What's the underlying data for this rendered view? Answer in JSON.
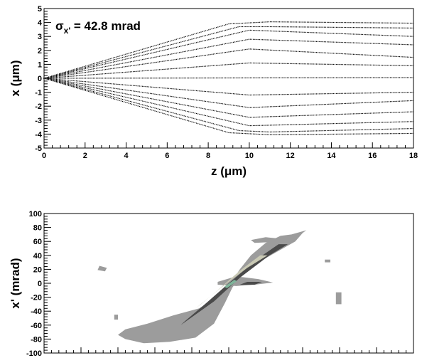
{
  "chart_data": [
    {
      "type": "scatter",
      "title": "",
      "annotation": {
        "symbol": "σ",
        "subscript": "x'",
        "text": " = 42.8 mrad"
      },
      "xlabel": "z (μm)",
      "ylabel": "x (μm)",
      "xlim": [
        0,
        18
      ],
      "ylim": [
        -5,
        5
      ],
      "xticks": [
        0,
        2,
        4,
        6,
        8,
        10,
        12,
        14,
        16,
        18
      ],
      "yticks": [
        -5,
        -4,
        -3,
        -2,
        -1,
        0,
        1,
        2,
        3,
        4,
        5
      ],
      "grid": false,
      "trajectories": [
        {
          "x": [
            0,
            9,
            11,
            18
          ],
          "y": [
            0,
            3.9,
            4.05,
            3.95
          ]
        },
        {
          "x": [
            0,
            9.5,
            11,
            18
          ],
          "y": [
            0,
            3.7,
            3.7,
            3.6
          ]
        },
        {
          "x": [
            0,
            10,
            18
          ],
          "y": [
            0,
            3.45,
            3.0
          ]
        },
        {
          "x": [
            0,
            10,
            18
          ],
          "y": [
            0,
            2.8,
            2.4
          ]
        },
        {
          "x": [
            0,
            10,
            18
          ],
          "y": [
            0,
            2.1,
            1.5
          ]
        },
        {
          "x": [
            0,
            10,
            18
          ],
          "y": [
            0,
            1.1,
            0.9
          ]
        },
        {
          "x": [
            0,
            18
          ],
          "y": [
            0,
            0.05
          ]
        },
        {
          "x": [
            0,
            10,
            18
          ],
          "y": [
            0,
            -1.2,
            -1.0
          ]
        },
        {
          "x": [
            0,
            10,
            18
          ],
          "y": [
            0,
            -2.1,
            -1.6
          ]
        },
        {
          "x": [
            0,
            10,
            18
          ],
          "y": [
            0,
            -2.8,
            -2.4
          ]
        },
        {
          "x": [
            0,
            10,
            18
          ],
          "y": [
            0,
            -3.4,
            -3.1
          ]
        },
        {
          "x": [
            0,
            9.5,
            11,
            18
          ],
          "y": [
            0,
            -3.75,
            -3.85,
            -3.6
          ]
        },
        {
          "x": [
            0,
            9,
            11,
            18
          ],
          "y": [
            0,
            -3.9,
            -4.05,
            -3.95
          ]
        }
      ]
    },
    {
      "type": "heatmap",
      "title": "",
      "xlabel": "",
      "ylabel": "x' (mrad)",
      "xlim": [
        -5,
        5
      ],
      "ylim": [
        -100,
        100
      ],
      "xticks": [
        -5,
        -4,
        -3,
        -2,
        -1,
        0,
        1,
        2,
        3,
        4,
        5
      ],
      "yticks": [
        -100,
        -80,
        -60,
        -40,
        -20,
        0,
        20,
        40,
        60,
        80,
        100
      ],
      "show_xtick_labels": false,
      "colors": {
        "outer": "#9c9c9c",
        "mid": "#4a4a4a",
        "light": "#c9c9b4",
        "core": "#7fb49a"
      },
      "regions": [
        {
          "level": "outer",
          "points": [
            [
              -3.0,
              -74
            ],
            [
              -2.8,
              -80
            ],
            [
              -2.3,
              -86
            ],
            [
              -1.6,
              -84
            ],
            [
              -0.9,
              -78
            ],
            [
              -0.4,
              -58
            ],
            [
              -0.1,
              -28
            ],
            [
              0.1,
              -6
            ],
            [
              0.35,
              12
            ],
            [
              0.8,
              30
            ],
            [
              1.4,
              48
            ],
            [
              1.8,
              60
            ],
            [
              2.0,
              72
            ],
            [
              2.1,
              76
            ],
            [
              1.7,
              70
            ],
            [
              1.4,
              68
            ],
            [
              1.0,
              58
            ],
            [
              0.6,
              40
            ],
            [
              0.3,
              20
            ],
            [
              0.05,
              0
            ],
            [
              -0.2,
              -16
            ],
            [
              -0.8,
              -36
            ],
            [
              -1.5,
              -46
            ],
            [
              -2.2,
              -58
            ],
            [
              -2.8,
              -66
            ]
          ]
        },
        {
          "level": "outer",
          "points": [
            [
              -0.3,
              2
            ],
            [
              0.2,
              10
            ],
            [
              0.8,
              6
            ],
            [
              1.2,
              1
            ],
            [
              0.7,
              -2
            ],
            [
              0.2,
              -4
            ],
            [
              -0.3,
              -2
            ]
          ]
        },
        {
          "level": "outer",
          "points": [
            [
              -3.5,
              25
            ],
            [
              -3.3,
              22
            ],
            [
              -3.35,
              17
            ],
            [
              -3.55,
              19
            ]
          ]
        },
        {
          "level": "outer",
          "points": [
            [
              2.9,
              -13
            ],
            [
              3.05,
              -13
            ],
            [
              3.05,
              -30
            ],
            [
              2.9,
              -30
            ]
          ]
        },
        {
          "level": "outer",
          "points": [
            [
              -3.1,
              -45
            ],
            [
              -3.0,
              -45
            ],
            [
              -3.0,
              -52
            ],
            [
              -3.1,
              -52
            ]
          ]
        },
        {
          "level": "outer",
          "points": [
            [
              0.6,
              62
            ],
            [
              1.0,
              66
            ],
            [
              1.4,
              64
            ],
            [
              1.1,
              59
            ],
            [
              0.7,
              58
            ]
          ]
        },
        {
          "level": "outer",
          "points": [
            [
              2.6,
              34
            ],
            [
              2.75,
              34
            ],
            [
              2.75,
              30
            ],
            [
              2.6,
              30
            ]
          ]
        },
        {
          "level": "mid",
          "points": [
            [
              -1.3,
              -60
            ],
            [
              -0.4,
              -26
            ],
            [
              0.3,
              8
            ],
            [
              1.1,
              40
            ],
            [
              1.6,
              56
            ],
            [
              1.35,
              56
            ],
            [
              0.8,
              36
            ],
            [
              0.0,
              0
            ],
            [
              -0.6,
              -28
            ],
            [
              -1.2,
              -55
            ]
          ]
        },
        {
          "level": "mid",
          "points": [
            [
              0.3,
              -2
            ],
            [
              0.5,
              2
            ],
            [
              0.9,
              2
            ],
            [
              0.7,
              -2
            ]
          ]
        },
        {
          "level": "light",
          "points": [
            [
              -0.9,
              -36
            ],
            [
              -0.2,
              -6
            ],
            [
              0.5,
              22
            ],
            [
              1.05,
              40
            ],
            [
              0.85,
              40
            ],
            [
              0.3,
              18
            ],
            [
              -0.3,
              -10
            ],
            [
              -0.75,
              -30
            ]
          ]
        },
        {
          "level": "core",
          "points": [
            [
              -0.12,
              -5
            ],
            [
              0.15,
              5
            ],
            [
              0.22,
              3
            ],
            [
              -0.05,
              -7
            ]
          ]
        }
      ]
    }
  ]
}
